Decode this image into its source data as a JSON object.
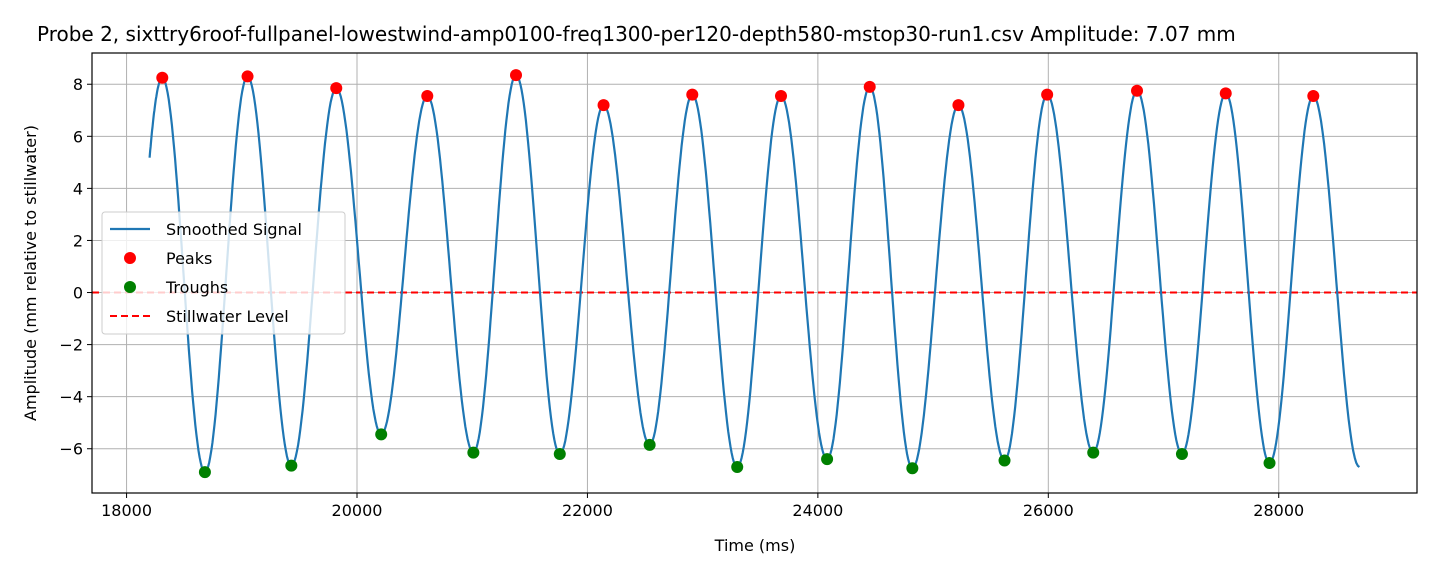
{
  "chart_data": {
    "type": "line",
    "title": "Probe 2, sixttry6roof-fullpanel-lowestwind-amp0100-freq1300-per120-depth580-mstop30-run1.csv Amplitude: 7.07 mm",
    "xlabel": "Time (ms)",
    "ylabel": "Amplitude (mm relative to stillwater)",
    "xlim": [
      17700,
      29200
    ],
    "ylim": [
      -7.7,
      9.2
    ],
    "x_ticks": [
      18000,
      20000,
      22000,
      24000,
      26000,
      28000
    ],
    "x_tick_labels": [
      "18000",
      "20000",
      "22000",
      "24000",
      "26000",
      "28000"
    ],
    "y_ticks": [
      -6,
      -4,
      -2,
      0,
      2,
      4,
      6,
      8
    ],
    "y_tick_labels": [
      "−6",
      "−4",
      "−2",
      "0",
      "2",
      "4",
      "6",
      "8"
    ],
    "grid": true,
    "legend_position": "center-left",
    "colors": {
      "signal": "#1f77b4",
      "peaks": "#ff0000",
      "troughs": "#008000",
      "stillwater": "#ff0000",
      "grid": "#b0b0b0"
    },
    "legend": [
      {
        "label": "Smoothed Signal",
        "marker": "line",
        "color": "#1f77b4"
      },
      {
        "label": "Peaks",
        "marker": "dot",
        "color": "#ff0000"
      },
      {
        "label": "Troughs",
        "marker": "dot",
        "color": "#008000"
      },
      {
        "label": "Stillwater Level",
        "marker": "dashed",
        "color": "#ff0000"
      }
    ],
    "series": [
      {
        "name": "Peaks",
        "points": [
          {
            "x": 18310,
            "y": 8.25
          },
          {
            "x": 19050,
            "y": 8.3
          },
          {
            "x": 19820,
            "y": 7.85
          },
          {
            "x": 20610,
            "y": 7.55
          },
          {
            "x": 21380,
            "y": 8.35
          },
          {
            "x": 22140,
            "y": 7.2
          },
          {
            "x": 22910,
            "y": 7.6
          },
          {
            "x": 23680,
            "y": 7.55
          },
          {
            "x": 24450,
            "y": 7.9
          },
          {
            "x": 25220,
            "y": 7.2
          },
          {
            "x": 25990,
            "y": 7.6
          },
          {
            "x": 26770,
            "y": 7.75
          },
          {
            "x": 27540,
            "y": 7.65
          },
          {
            "x": 28300,
            "y": 7.55
          }
        ]
      },
      {
        "name": "Troughs",
        "points": [
          {
            "x": 18680,
            "y": -6.9
          },
          {
            "x": 19430,
            "y": -6.65
          },
          {
            "x": 20210,
            "y": -5.45
          },
          {
            "x": 21010,
            "y": -6.15
          },
          {
            "x": 21760,
            "y": -6.2
          },
          {
            "x": 22540,
            "y": -5.85
          },
          {
            "x": 23300,
            "y": -6.7
          },
          {
            "x": 24080,
            "y": -6.4
          },
          {
            "x": 24820,
            "y": -6.75
          },
          {
            "x": 25620,
            "y": -6.45
          },
          {
            "x": 26390,
            "y": -6.15
          },
          {
            "x": 27160,
            "y": -6.2
          },
          {
            "x": 27920,
            "y": -6.55
          }
        ]
      },
      {
        "name": "Smoothed Signal",
        "start": {
          "x": 18200,
          "y": 5.3
        },
        "end": {
          "x": 28700,
          "y": -6.7
        }
      },
      {
        "name": "Stillwater Level",
        "y": 0
      }
    ]
  }
}
